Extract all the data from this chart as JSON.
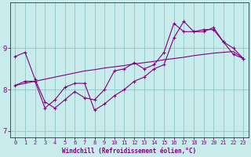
{
  "xlabel": "Windchill (Refroidissement éolien,°C)",
  "background_color": "#c8ecec",
  "line_color": "#800080",
  "grid_color": "#90c8c8",
  "x_data": [
    0,
    1,
    2,
    3,
    4,
    5,
    6,
    7,
    8,
    9,
    10,
    11,
    12,
    13,
    14,
    15,
    16,
    17,
    18,
    19,
    20,
    21,
    22,
    23
  ],
  "y_line1": [
    8.8,
    8.9,
    8.25,
    7.7,
    7.55,
    7.75,
    7.95,
    7.8,
    7.75,
    8.0,
    8.45,
    8.5,
    8.65,
    8.5,
    8.6,
    8.9,
    9.6,
    9.4,
    9.4,
    9.45,
    9.45,
    9.15,
    9.0,
    8.75
  ],
  "y_line2": [
    8.1,
    8.2,
    8.2,
    7.55,
    7.75,
    8.05,
    8.15,
    8.15,
    7.5,
    7.65,
    7.85,
    8.0,
    8.2,
    8.3,
    8.5,
    8.6,
    9.25,
    9.65,
    9.4,
    9.4,
    9.5,
    9.15,
    8.85,
    8.75
  ],
  "y_trend": [
    8.1,
    8.15,
    8.2,
    8.25,
    8.3,
    8.35,
    8.4,
    8.45,
    8.48,
    8.52,
    8.55,
    8.58,
    8.62,
    8.65,
    8.68,
    8.72,
    8.75,
    8.78,
    8.82,
    8.85,
    8.88,
    8.9,
    8.92,
    8.75
  ],
  "ylim": [
    6.85,
    10.1
  ],
  "yticks": [
    7,
    8,
    9
  ],
  "xlim": [
    -0.5,
    23.5
  ],
  "xticks": [
    0,
    1,
    2,
    3,
    4,
    5,
    6,
    7,
    8,
    9,
    10,
    11,
    12,
    13,
    14,
    15,
    16,
    17,
    18,
    19,
    20,
    21,
    22,
    23
  ]
}
